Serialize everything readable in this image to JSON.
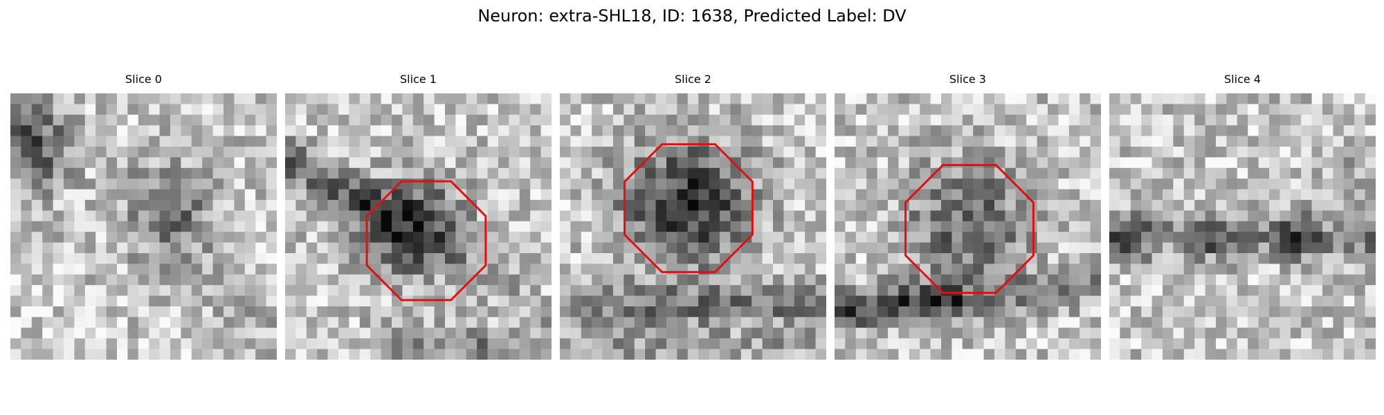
{
  "figure": {
    "title": "Neuron: extra-SHL18, ID: 1638, Predicted Label: DV",
    "outline_color": "#e01010"
  },
  "slices": [
    {
      "title": "Slice 0",
      "has_outline": false,
      "seed": 11,
      "dark_features": [
        "upper-left corner",
        "center-right blob"
      ]
    },
    {
      "title": "Slice 1",
      "has_outline": true,
      "seed": 23,
      "dark_features": [
        "center round body",
        "left diagonal band"
      ]
    },
    {
      "title": "Slice 2",
      "has_outline": true,
      "seed": 37,
      "dark_features": [
        "center round body",
        "bottom band"
      ]
    },
    {
      "title": "Slice 3",
      "has_outline": true,
      "seed": 41,
      "dark_features": [
        "center round body",
        "lower-left band"
      ]
    },
    {
      "title": "Slice 4",
      "has_outline": false,
      "seed": 59,
      "dark_features": [
        "horizontal band"
      ]
    }
  ]
}
